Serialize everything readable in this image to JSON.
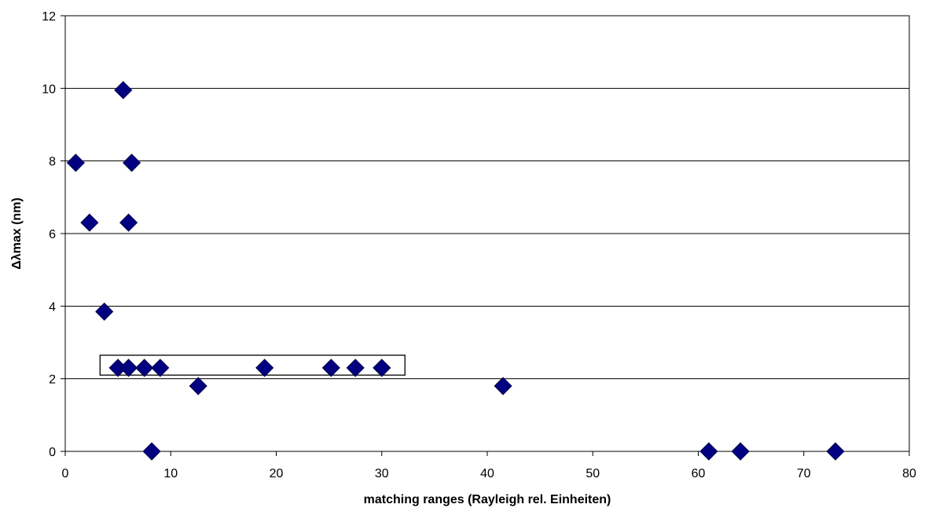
{
  "chart_data": {
    "type": "scatter",
    "title": "",
    "xlabel": "matching ranges (Rayleigh rel. Einheiten)",
    "ylabel": "Δλmax (nm)",
    "xlim": [
      0,
      80
    ],
    "ylim": [
      0,
      12
    ],
    "x_ticks": [
      0,
      10,
      20,
      30,
      40,
      50,
      60,
      70,
      80
    ],
    "y_ticks": [
      0,
      2,
      4,
      6,
      8,
      10,
      12
    ],
    "grid": "horizontal",
    "legend": "none",
    "marker": "diamond",
    "marker_color": "#000080",
    "series": [
      {
        "values": [
          {
            "x": 1.0,
            "y": 7.95
          },
          {
            "x": 2.3,
            "y": 6.3
          },
          {
            "x": 3.7,
            "y": 3.85
          },
          {
            "x": 5.0,
            "y": 2.3
          },
          {
            "x": 5.5,
            "y": 9.95
          },
          {
            "x": 6.0,
            "y": 2.3
          },
          {
            "x": 6.0,
            "y": 6.3
          },
          {
            "x": 6.3,
            "y": 7.95
          },
          {
            "x": 7.5,
            "y": 2.3
          },
          {
            "x": 8.2,
            "y": 0.0
          },
          {
            "x": 9.0,
            "y": 2.3
          },
          {
            "x": 12.6,
            "y": 1.8
          },
          {
            "x": 18.9,
            "y": 2.3
          },
          {
            "x": 25.2,
            "y": 2.3
          },
          {
            "x": 27.5,
            "y": 2.3
          },
          {
            "x": 30.0,
            "y": 2.3
          },
          {
            "x": 41.5,
            "y": 1.8
          },
          {
            "x": 61.0,
            "y": 0.0
          },
          {
            "x": 64.0,
            "y": 0.0
          },
          {
            "x": 73.0,
            "y": 0.0
          }
        ]
      }
    ],
    "annotations": [
      {
        "type": "rectangle",
        "x_range": [
          3.3,
          32.2
        ],
        "y_range": [
          2.1,
          2.65
        ]
      }
    ]
  }
}
